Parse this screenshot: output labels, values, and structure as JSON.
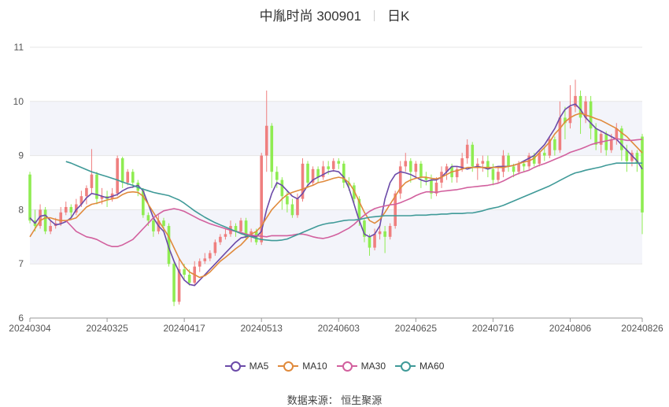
{
  "title": {
    "name": "中胤时尚 300901",
    "period": "日K"
  },
  "source": "数据来源： 恒生聚源",
  "colors": {
    "up": "#ef7f7f",
    "down": "#8fec52",
    "grid": "#e6e6e6",
    "band": "#f3f4fa",
    "axis": "#555555"
  },
  "chart_data": {
    "type": "candlestick",
    "y_ticks": [
      6,
      7,
      8,
      9,
      10,
      11
    ],
    "ylim": [
      6,
      11
    ],
    "x_ticks": [
      {
        "label": "20240304",
        "index": 0
      },
      {
        "label": "20240325",
        "index": 15
      },
      {
        "label": "20240417",
        "index": 30
      },
      {
        "label": "20240513",
        "index": 45
      },
      {
        "label": "20240603",
        "index": 60
      },
      {
        "label": "20240625",
        "index": 75
      },
      {
        "label": "20240716",
        "index": 90
      },
      {
        "label": "20240806",
        "index": 105
      },
      {
        "label": "20240826",
        "index": 119
      }
    ],
    "candles": [
      [
        8.65,
        7.8,
        8.7,
        7.75
      ],
      [
        7.8,
        7.7,
        8.0,
        7.6
      ],
      [
        7.7,
        8.0,
        8.1,
        7.65
      ],
      [
        8.0,
        7.6,
        8.05,
        7.55
      ],
      [
        7.6,
        7.7,
        7.8,
        7.55
      ],
      [
        7.7,
        7.75,
        7.85,
        7.65
      ],
      [
        7.75,
        7.95,
        8.05,
        7.7
      ],
      [
        7.95,
        8.05,
        8.15,
        7.9
      ],
      [
        8.05,
        7.95,
        8.1,
        7.85
      ],
      [
        7.95,
        8.1,
        8.2,
        7.9
      ],
      [
        8.1,
        8.25,
        8.35,
        8.05
      ],
      [
        8.25,
        8.4,
        8.45,
        8.1
      ],
      [
        8.4,
        8.65,
        9.12,
        8.3
      ],
      [
        8.65,
        8.2,
        8.7,
        8.1
      ],
      [
        8.2,
        8.25,
        8.4,
        8.1
      ],
      [
        8.25,
        8.2,
        8.35,
        8.05
      ],
      [
        8.2,
        8.3,
        8.4,
        8.15
      ],
      [
        8.3,
        8.95,
        9.0,
        8.25
      ],
      [
        8.95,
        8.5,
        8.98,
        8.4
      ],
      [
        8.5,
        8.7,
        8.75,
        8.45
      ],
      [
        8.7,
        8.5,
        8.75,
        8.4
      ],
      [
        8.5,
        8.35,
        8.55,
        8.25
      ],
      [
        8.35,
        7.9,
        8.4,
        7.85
      ],
      [
        7.9,
        7.8,
        7.95,
        7.7
      ],
      [
        7.8,
        7.6,
        7.85,
        7.5
      ],
      [
        7.6,
        7.8,
        7.9,
        7.55
      ],
      [
        7.8,
        7.7,
        7.85,
        7.6
      ],
      [
        7.7,
        7.0,
        7.75,
        6.95
      ],
      [
        7.0,
        6.3,
        7.05,
        6.22
      ],
      [
        6.3,
        6.9,
        7.1,
        6.25
      ],
      [
        6.9,
        6.8,
        7.0,
        6.7
      ],
      [
        6.8,
        6.65,
        6.9,
        6.6
      ],
      [
        6.65,
        6.95,
        7.05,
        6.6
      ],
      [
        6.95,
        7.05,
        7.1,
        6.85
      ],
      [
        7.05,
        7.1,
        7.2,
        7.0
      ],
      [
        7.1,
        7.2,
        7.25,
        7.05
      ],
      [
        7.2,
        7.4,
        7.45,
        7.15
      ],
      [
        7.4,
        7.5,
        7.55,
        7.35
      ],
      [
        7.5,
        7.55,
        7.65,
        7.45
      ],
      [
        7.55,
        7.7,
        7.8,
        7.5
      ],
      [
        7.7,
        7.6,
        7.75,
        7.5
      ],
      [
        7.6,
        7.8,
        7.85,
        7.55
      ],
      [
        7.8,
        7.5,
        7.85,
        7.45
      ],
      [
        7.5,
        7.6,
        7.65,
        7.4
      ],
      [
        7.6,
        7.4,
        7.65,
        7.35
      ],
      [
        7.4,
        9.0,
        9.05,
        7.35
      ],
      [
        9.0,
        9.55,
        10.2,
        8.7
      ],
      [
        9.55,
        8.7,
        9.6,
        8.4
      ],
      [
        8.7,
        8.55,
        8.8,
        8.4
      ],
      [
        8.55,
        8.25,
        8.6,
        8.0
      ],
      [
        8.25,
        8.1,
        8.35,
        7.95
      ],
      [
        8.1,
        7.9,
        8.2,
        7.85
      ],
      [
        7.9,
        8.2,
        8.3,
        7.85
      ],
      [
        8.2,
        8.85,
        8.95,
        8.15
      ],
      [
        8.85,
        8.5,
        8.9,
        8.4
      ],
      [
        8.5,
        8.75,
        8.8,
        8.45
      ],
      [
        8.75,
        8.6,
        8.8,
        8.5
      ],
      [
        8.6,
        8.8,
        8.9,
        8.55
      ],
      [
        8.8,
        8.75,
        8.9,
        8.65
      ],
      [
        8.75,
        8.9,
        8.95,
        8.7
      ],
      [
        8.9,
        8.85,
        8.95,
        8.75
      ],
      [
        8.85,
        8.5,
        8.9,
        8.4
      ],
      [
        8.5,
        8.45,
        8.6,
        8.35
      ],
      [
        8.45,
        8.2,
        8.5,
        8.1
      ],
      [
        8.2,
        7.8,
        8.25,
        7.7
      ],
      [
        7.8,
        7.5,
        7.85,
        7.4
      ],
      [
        7.5,
        7.3,
        7.55,
        7.15
      ],
      [
        7.3,
        7.55,
        7.65,
        7.25
      ],
      [
        7.55,
        7.6,
        7.7,
        7.45
      ],
      [
        7.6,
        7.5,
        7.7,
        7.2
      ],
      [
        7.5,
        7.7,
        7.75,
        7.45
      ],
      [
        7.7,
        8.3,
        8.35,
        7.65
      ],
      [
        8.3,
        8.8,
        8.9,
        8.2
      ],
      [
        8.8,
        8.9,
        9.05,
        8.7
      ],
      [
        8.9,
        8.7,
        8.95,
        8.5
      ],
      [
        8.7,
        8.85,
        8.9,
        8.6
      ],
      [
        8.85,
        8.6,
        8.9,
        8.4
      ],
      [
        8.6,
        8.55,
        8.7,
        8.45
      ],
      [
        8.55,
        8.3,
        8.65,
        8.2
      ],
      [
        8.3,
        8.5,
        8.6,
        8.25
      ],
      [
        8.5,
        8.7,
        8.8,
        8.4
      ],
      [
        8.7,
        8.8,
        8.85,
        8.55
      ],
      [
        8.8,
        8.6,
        8.85,
        8.5
      ],
      [
        8.6,
        8.75,
        8.8,
        8.5
      ],
      [
        8.75,
        8.95,
        9.05,
        8.7
      ],
      [
        8.95,
        9.2,
        9.3,
        8.85
      ],
      [
        9.2,
        8.8,
        9.25,
        8.7
      ],
      [
        8.8,
        8.85,
        8.95,
        8.55
      ],
      [
        8.85,
        8.9,
        9.0,
        8.7
      ],
      [
        8.9,
        8.75,
        9.0,
        8.6
      ],
      [
        8.75,
        8.55,
        8.85,
        8.45
      ],
      [
        8.55,
        8.7,
        8.8,
        8.5
      ],
      [
        8.7,
        9.0,
        9.1,
        8.6
      ],
      [
        9.0,
        8.8,
        9.05,
        8.7
      ],
      [
        8.8,
        8.7,
        8.85,
        8.6
      ],
      [
        8.7,
        8.85,
        8.9,
        8.65
      ],
      [
        8.85,
        8.8,
        8.9,
        8.7
      ],
      [
        8.8,
        9.0,
        9.05,
        8.75
      ],
      [
        9.0,
        8.85,
        9.05,
        8.8
      ],
      [
        8.85,
        9.05,
        9.1,
        8.8
      ],
      [
        9.05,
        9.0,
        9.15,
        8.9
      ],
      [
        9.0,
        9.3,
        9.35,
        8.95
      ],
      [
        9.3,
        9.1,
        9.35,
        9.0
      ],
      [
        9.1,
        9.7,
        10.0,
        9.05
      ],
      [
        9.7,
        9.6,
        9.9,
        9.3
      ],
      [
        9.6,
        9.9,
        10.3,
        9.5
      ],
      [
        9.9,
        10.1,
        10.4,
        9.8
      ],
      [
        10.1,
        9.7,
        10.2,
        9.4
      ],
      [
        9.7,
        10.0,
        10.1,
        9.6
      ],
      [
        10.0,
        9.5,
        10.1,
        9.3
      ],
      [
        9.5,
        9.2,
        9.6,
        9.1
      ],
      [
        9.2,
        9.4,
        9.45,
        9.05
      ],
      [
        9.4,
        9.1,
        9.45,
        9.0
      ],
      [
        9.1,
        9.3,
        9.4,
        9.05
      ],
      [
        9.3,
        9.5,
        9.6,
        9.2
      ],
      [
        9.5,
        9.1,
        9.55,
        8.9
      ],
      [
        9.1,
        8.9,
        9.2,
        8.7
      ],
      [
        8.9,
        9.05,
        9.1,
        8.8
      ],
      [
        9.05,
        8.85,
        9.1,
        8.7
      ],
      [
        9.35,
        7.95,
        9.4,
        7.55
      ]
    ],
    "series": [
      {
        "name": "MA5",
        "color": "#6b4aa8",
        "values": [
          7.85,
          7.75,
          7.88,
          7.9,
          7.8,
          7.72,
          7.74,
          7.78,
          7.85,
          8.0,
          8.1,
          8.22,
          8.3,
          8.28,
          8.25,
          8.22,
          8.25,
          8.28,
          8.35,
          8.4,
          8.42,
          8.45,
          8.35,
          8.1,
          7.85,
          7.7,
          7.6,
          7.3,
          7.05,
          6.85,
          6.7,
          6.62,
          6.6,
          6.7,
          6.8,
          6.9,
          7.0,
          7.1,
          7.2,
          7.3,
          7.4,
          7.48,
          7.5,
          7.52,
          7.5,
          7.6,
          8.0,
          8.3,
          8.5,
          8.45,
          8.35,
          8.25,
          8.2,
          8.3,
          8.45,
          8.55,
          8.6,
          8.65,
          8.7,
          8.72,
          8.7,
          8.6,
          8.4,
          8.1,
          7.8,
          7.55,
          7.5,
          7.55,
          7.7,
          8.2,
          8.5,
          8.65,
          8.7,
          8.68,
          8.65,
          8.6,
          8.55,
          8.52,
          8.55,
          8.55,
          8.6,
          8.7,
          8.8,
          8.8,
          8.78,
          8.75,
          8.78,
          8.8,
          8.78,
          8.75,
          8.78,
          8.8,
          8.8,
          8.8,
          8.82,
          8.85,
          8.9,
          8.95,
          9.0,
          9.1,
          9.2,
          9.35,
          9.5,
          9.7,
          9.85,
          9.92,
          9.95,
          9.85,
          9.7,
          9.6,
          9.5,
          9.45,
          9.4,
          9.35,
          9.3,
          9.2,
          9.1,
          9.0,
          8.9,
          8.75
        ]
      },
      {
        "name": "MA10",
        "color": "#e08a3c",
        "values": [
          7.5,
          7.65,
          7.8,
          7.85,
          7.85,
          7.82,
          7.8,
          7.8,
          7.82,
          7.85,
          7.95,
          8.05,
          8.1,
          8.12,
          8.15,
          8.18,
          8.2,
          8.22,
          8.28,
          8.32,
          8.33,
          8.32,
          8.25,
          8.1,
          7.95,
          7.8,
          7.65,
          7.5,
          7.3,
          7.1,
          6.95,
          6.85,
          6.8,
          6.75,
          6.78,
          6.85,
          6.95,
          7.05,
          7.12,
          7.2,
          7.28,
          7.35,
          7.45,
          7.55,
          7.6,
          7.7,
          7.85,
          8.0,
          8.1,
          8.2,
          8.28,
          8.32,
          8.35,
          8.38,
          8.42,
          8.45,
          8.5,
          8.52,
          8.55,
          8.58,
          8.6,
          8.58,
          8.5,
          8.35,
          8.15,
          7.95,
          7.8,
          7.75,
          7.82,
          7.95,
          8.1,
          8.25,
          8.4,
          8.5,
          8.55,
          8.58,
          8.6,
          8.6,
          8.58,
          8.57,
          8.6,
          8.65,
          8.7,
          8.72,
          8.75,
          8.78,
          8.78,
          8.78,
          8.78,
          8.78,
          8.78,
          8.78,
          8.78,
          8.8,
          8.82,
          8.85,
          8.88,
          8.9,
          8.95,
          9.05,
          9.15,
          9.25,
          9.4,
          9.5,
          9.62,
          9.7,
          9.75,
          9.78,
          9.75,
          9.72,
          9.68,
          9.65,
          9.6,
          9.55,
          9.5,
          9.42,
          9.35,
          9.25,
          9.15,
          9.05
        ]
      },
      {
        "name": "MA30",
        "color": "#d2609e",
        "values": [
          7.8,
          7.7,
          7.6,
          7.55,
          7.5,
          7.48,
          7.45,
          7.4,
          7.35,
          7.32,
          7.32,
          7.35,
          7.4,
          7.45,
          7.55,
          7.65,
          7.75,
          7.85,
          7.92,
          7.98,
          8.0,
          8.02,
          8.0,
          7.97,
          7.92,
          7.87,
          7.82,
          7.78,
          7.74,
          7.71,
          7.68,
          7.65,
          7.62,
          7.6,
          7.58,
          7.55,
          7.53,
          7.52,
          7.51,
          7.5,
          7.52,
          7.52,
          7.52,
          7.52,
          7.53,
          7.55,
          7.55,
          7.53,
          7.5,
          7.48,
          7.47,
          7.49,
          7.52,
          7.56,
          7.61,
          7.66,
          7.73,
          7.82,
          7.9,
          7.97,
          8.02,
          8.05,
          8.07,
          8.09,
          8.1,
          8.13,
          8.17,
          8.21,
          8.26,
          8.3,
          8.33,
          8.33,
          8.32,
          8.34,
          8.35,
          8.36,
          8.37,
          8.39,
          8.41,
          8.42,
          8.43,
          8.44,
          8.45,
          8.47,
          8.49,
          8.53,
          8.58,
          8.63,
          8.67,
          8.7,
          8.73,
          8.78,
          8.82,
          8.85,
          8.89,
          8.93,
          8.97,
          9.01,
          9.06,
          9.09,
          9.12,
          9.16,
          9.2,
          9.23,
          9.25,
          9.27,
          9.29,
          9.31,
          9.3,
          9.28,
          9.28,
          9.29,
          9.3
        ]
      },
      {
        "name": "MA60",
        "color": "#3f9a98",
        "values": [
          8.89,
          8.86,
          8.82,
          8.78,
          8.74,
          8.7,
          8.67,
          8.64,
          8.61,
          8.58,
          8.55,
          8.51,
          8.48,
          8.45,
          8.41,
          8.38,
          8.35,
          8.32,
          8.3,
          8.28,
          8.26,
          8.22,
          8.18,
          8.12,
          8.05,
          7.98,
          7.92,
          7.86,
          7.81,
          7.76,
          7.72,
          7.68,
          7.64,
          7.6,
          7.56,
          7.53,
          7.5,
          7.47,
          7.45,
          7.44,
          7.43,
          7.43,
          7.44,
          7.46,
          7.5,
          7.54,
          7.58,
          7.62,
          7.66,
          7.7,
          7.73,
          7.75,
          7.76,
          7.78,
          7.8,
          7.81,
          7.81,
          7.82,
          7.84,
          7.86,
          7.87,
          7.88,
          7.89,
          7.89,
          7.89,
          7.89,
          7.89,
          7.89,
          7.9,
          7.9,
          7.9,
          7.91,
          7.91,
          7.92,
          7.92,
          7.93,
          7.93,
          7.93,
          7.94,
          7.94,
          7.96,
          7.98,
          8.01,
          8.03,
          8.05,
          8.08,
          8.12,
          8.16,
          8.2,
          8.24,
          8.28,
          8.32,
          8.36,
          8.4,
          8.44,
          8.49,
          8.54,
          8.59,
          8.64,
          8.68,
          8.7,
          8.73,
          8.75,
          8.77,
          8.79,
          8.82,
          8.84,
          8.86,
          8.86,
          8.86,
          8.86,
          8.86,
          8.86
        ]
      }
    ],
    "grid": true,
    "legend_position": "bottom-center"
  }
}
